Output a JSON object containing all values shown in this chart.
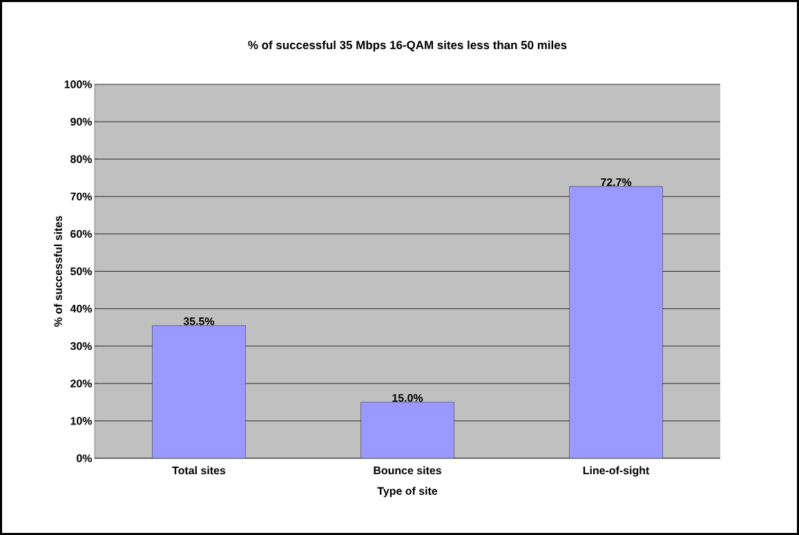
{
  "chart_data": {
    "type": "bar",
    "title": "% of successful 35 Mbps 16-QAM sites less than 50 miles",
    "xlabel": "Type of site",
    "ylabel": "% of successful sites",
    "categories": [
      "Total sites",
      "Bounce sites",
      "Line-of-sight"
    ],
    "values": [
      35.5,
      15.0,
      72.7
    ],
    "value_labels": [
      "35.5%",
      "15.0%",
      "72.7%"
    ],
    "color": "#9999ff",
    "ylim": [
      0,
      100
    ],
    "yticks": [
      {
        "value": 0,
        "label": "0%"
      },
      {
        "value": 10,
        "label": "10%"
      },
      {
        "value": 20,
        "label": "20%"
      },
      {
        "value": 30,
        "label": "30%"
      },
      {
        "value": 40,
        "label": "40%"
      },
      {
        "value": 50,
        "label": "50%"
      },
      {
        "value": 60,
        "label": "60%"
      },
      {
        "value": 70,
        "label": "70%"
      },
      {
        "value": 80,
        "label": "80%"
      },
      {
        "value": 90,
        "label": "90%"
      },
      {
        "value": 100,
        "label": "100%"
      }
    ],
    "grid": "y"
  }
}
